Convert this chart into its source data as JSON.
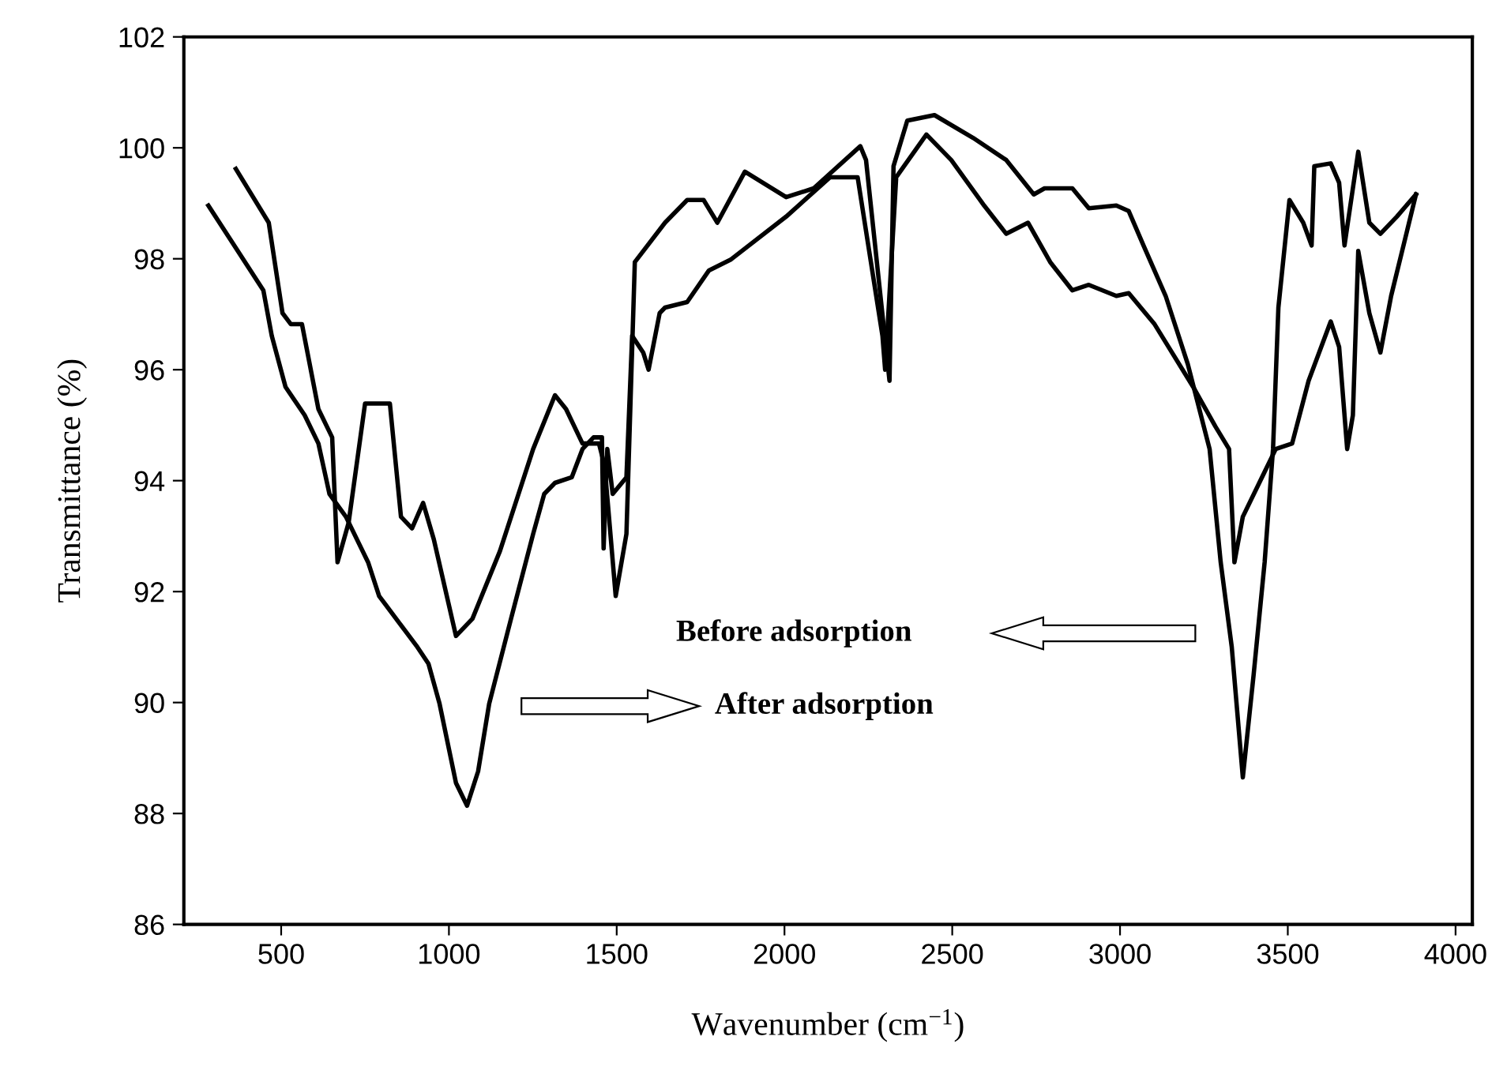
{
  "chart_data": {
    "type": "line",
    "xlabel": "Wavenumber (cm$^{−1}$)",
    "ylabel": "Transmittance (%)",
    "xlim": [
      210,
      4050
    ],
    "xticks": [
      500,
      1000,
      1500,
      2000,
      2500,
      3000,
      3500,
      4000
    ],
    "ylim": [
      86,
      102
    ],
    "yticks": [
      86,
      88,
      90,
      92,
      94,
      96,
      98,
      100,
      102
    ],
    "grid": false,
    "marker": "none",
    "line_style": "solid",
    "annotations": [
      "Before adsorption",
      "After adsorption"
    ],
    "series": [
      {
        "color": "#000000",
        "x": [
          283,
          447,
          472,
          513,
          570,
          611,
          644,
          693,
          759,
          792,
          906,
          939,
          972,
          1021,
          1054,
          1087,
          1120,
          1185,
          1251,
          1284,
          1316,
          1366,
          1398,
          1431,
          1456,
          1461,
          1472,
          1488,
          1529,
          1546,
          1579,
          1595,
          1628,
          1644,
          1710,
          1775,
          1841,
          2005,
          2136,
          2218,
          2292,
          2300,
          2333,
          2423,
          2497,
          2595,
          2661,
          2726,
          2792,
          2858,
          2907,
          2989,
          3026,
          3103,
          3218,
          3284,
          3325,
          3341,
          3366,
          3431,
          3464,
          3513,
          3562,
          3628,
          3653,
          3677,
          3694,
          3710,
          3743,
          3776,
          3808,
          3882
        ],
        "values": [
          98.96,
          97.43,
          96.61,
          95.69,
          95.18,
          94.67,
          93.76,
          93.35,
          92.53,
          91.92,
          91.0,
          90.7,
          89.98,
          88.55,
          88.14,
          88.76,
          89.98,
          91.51,
          93.04,
          93.76,
          93.96,
          94.06,
          94.57,
          94.78,
          94.78,
          92.78,
          94.57,
          93.76,
          94.06,
          96.61,
          96.31,
          96.0,
          97.02,
          97.12,
          97.22,
          97.79,
          97.99,
          98.76,
          99.47,
          99.47,
          96.61,
          96.0,
          99.47,
          100.24,
          99.78,
          98.96,
          98.45,
          98.65,
          97.94,
          97.43,
          97.53,
          97.33,
          97.38,
          96.82,
          95.69,
          94.98,
          94.57,
          92.53,
          93.35,
          94.16,
          94.57,
          94.67,
          95.8,
          96.87,
          96.41,
          94.57,
          95.18,
          98.14,
          97.02,
          96.31,
          97.33,
          99.16
        ]
      },
      {
        "color": "#000000",
        "x": [
          365,
          463,
          504,
          529,
          562,
          611,
          652,
          668,
          701,
          750,
          824,
          857,
          890,
          923,
          955,
          1021,
          1070,
          1152,
          1251,
          1316,
          1349,
          1398,
          1447,
          1464,
          1497,
          1529,
          1554,
          1644,
          1710,
          1759,
          1800,
          1882,
          2005,
          2087,
          2226,
          2243,
          2313,
          2325,
          2366,
          2447,
          2562,
          2661,
          2743,
          2775,
          2858,
          2907,
          2989,
          3026,
          3070,
          3136,
          3202,
          3267,
          3300,
          3333,
          3366,
          3398,
          3431,
          3456,
          3472,
          3505,
          3546,
          3571,
          3579,
          3628,
          3653,
          3669,
          3710,
          3743,
          3776,
          3825,
          3882
        ],
        "values": [
          99.62,
          98.65,
          97.02,
          96.82,
          96.82,
          95.29,
          94.78,
          92.53,
          93.24,
          95.39,
          95.39,
          93.35,
          93.14,
          93.6,
          92.94,
          91.2,
          91.51,
          92.73,
          94.57,
          95.54,
          95.29,
          94.67,
          94.67,
          94.27,
          91.92,
          93.04,
          97.94,
          98.65,
          99.06,
          99.06,
          98.65,
          99.57,
          99.11,
          99.27,
          100.03,
          99.78,
          95.8,
          99.67,
          100.49,
          100.59,
          100.18,
          99.78,
          99.16,
          99.27,
          99.27,
          98.91,
          98.96,
          98.86,
          98.24,
          97.33,
          96.1,
          94.57,
          92.53,
          91.0,
          88.65,
          90.49,
          92.53,
          94.57,
          97.12,
          99.06,
          98.65,
          98.24,
          99.67,
          99.72,
          99.37,
          98.24,
          99.93,
          98.65,
          98.45,
          98.76,
          99.16
        ]
      }
    ]
  }
}
